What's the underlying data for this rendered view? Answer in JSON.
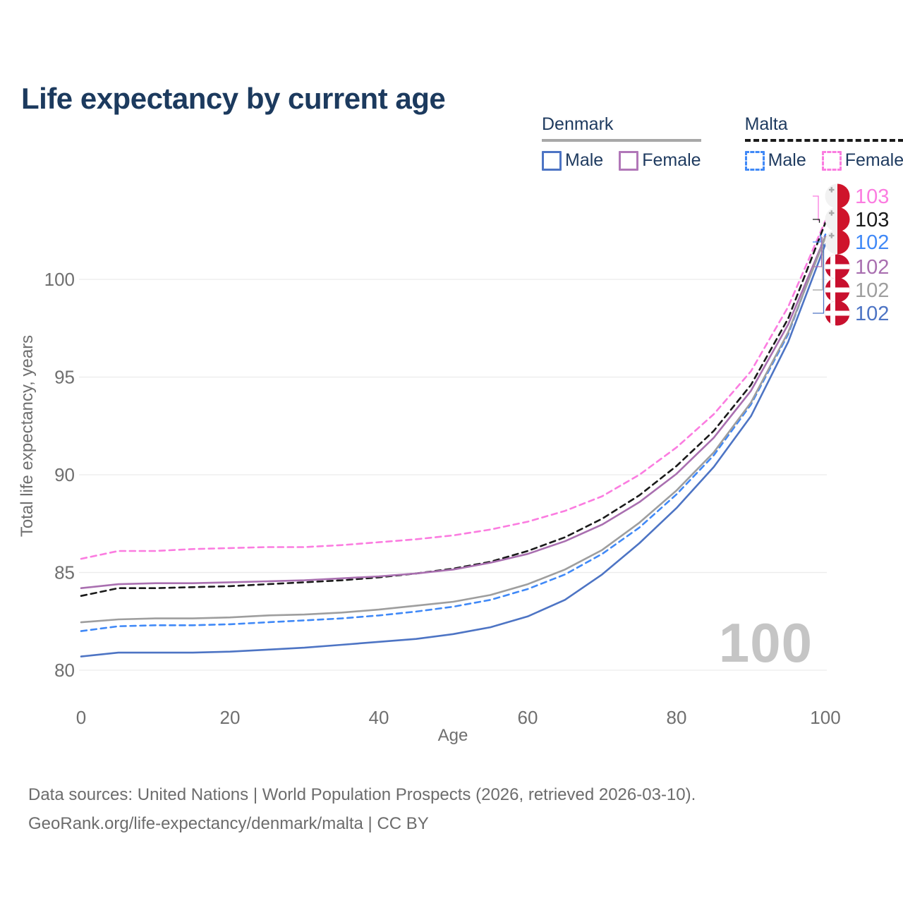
{
  "title": "Life expectancy by current age",
  "watermark": "100",
  "legend": {
    "groups": [
      {
        "name": "Denmark",
        "line_style": "solid",
        "underline_color": "#a8a8a8",
        "items": [
          {
            "label": "Male",
            "color": "#4d74c4",
            "dashed": false
          },
          {
            "label": "Female",
            "color": "#b177b8",
            "dashed": false
          }
        ]
      },
      {
        "name": "Malta",
        "line_style": "dashed",
        "underline_color": "#1a1a1a",
        "items": [
          {
            "label": "Male",
            "color": "#4089f7",
            "dashed": true
          },
          {
            "label": "Female",
            "color": "#fb7ce0",
            "dashed": true
          }
        ]
      }
    ]
  },
  "footer": {
    "line1": "Data sources: United Nations | World Population Prospects (2026, retrieved 2026-03-10).",
    "line2": "GeoRank.org/life-expectancy/denmark/malta | CC BY"
  },
  "chart_data": {
    "type": "line",
    "title": "Life expectancy by current age",
    "xlabel": "Age",
    "ylabel": "Total life expectancy, years",
    "xlim": [
      0,
      100
    ],
    "ylim": [
      79,
      105
    ],
    "x_ticks": [
      0,
      20,
      40,
      60,
      80,
      100
    ],
    "y_ticks": [
      80,
      85,
      90,
      95,
      100
    ],
    "grid": true,
    "legend_position": "top-right",
    "x": [
      0,
      5,
      10,
      15,
      20,
      25,
      30,
      35,
      40,
      45,
      50,
      55,
      60,
      65,
      70,
      75,
      80,
      85,
      90,
      95,
      100
    ],
    "series": [
      {
        "name": "Malta Female",
        "country": "Malta",
        "sex": "female",
        "color": "#fb7ce0",
        "dashed": true,
        "end_label": "103",
        "end_value": 103.0,
        "values": [
          85.7,
          86.1,
          86.1,
          86.2,
          86.25,
          86.3,
          86.3,
          86.4,
          86.55,
          86.7,
          86.9,
          87.2,
          87.6,
          88.15,
          88.9,
          90.0,
          91.4,
          93.1,
          95.3,
          98.6,
          103.0
        ]
      },
      {
        "name": "Malta",
        "country": "Malta",
        "sex": "total",
        "color": "#1a1a1a",
        "dashed": true,
        "end_label": "103",
        "end_value": 102.9,
        "values": [
          83.8,
          84.2,
          84.2,
          84.25,
          84.3,
          84.4,
          84.5,
          84.6,
          84.75,
          84.95,
          85.2,
          85.55,
          86.1,
          86.8,
          87.75,
          88.95,
          90.45,
          92.25,
          94.6,
          98.0,
          102.9
        ]
      },
      {
        "name": "Malta Male",
        "country": "Malta",
        "sex": "male",
        "color": "#4089f7",
        "dashed": true,
        "end_label": "102",
        "end_value": 102.3,
        "values": [
          82.0,
          82.25,
          82.3,
          82.3,
          82.35,
          82.45,
          82.55,
          82.65,
          82.8,
          83.0,
          83.25,
          83.6,
          84.15,
          84.9,
          85.95,
          87.3,
          89.0,
          91.0,
          93.6,
          97.2,
          102.3
        ]
      },
      {
        "name": "Denmark Female",
        "country": "Denmark",
        "sex": "female",
        "color": "#a96fb0",
        "dashed": false,
        "end_label": "102",
        "end_value": 102.2,
        "values": [
          84.2,
          84.4,
          84.45,
          84.45,
          84.5,
          84.55,
          84.6,
          84.7,
          84.8,
          84.95,
          85.15,
          85.5,
          85.95,
          86.6,
          87.45,
          88.6,
          90.05,
          91.9,
          94.3,
          97.7,
          102.2
        ]
      },
      {
        "name": "Denmark",
        "country": "Denmark",
        "sex": "total",
        "color": "#9e9e9e",
        "dashed": false,
        "end_label": "102",
        "end_value": 102.15,
        "values": [
          82.45,
          82.6,
          82.65,
          82.65,
          82.7,
          82.8,
          82.85,
          82.95,
          83.1,
          83.3,
          83.5,
          83.85,
          84.4,
          85.15,
          86.15,
          87.55,
          89.2,
          91.15,
          93.7,
          97.3,
          102.15
        ]
      },
      {
        "name": "Denmark Male",
        "country": "Denmark",
        "sex": "male",
        "color": "#4d74c4",
        "dashed": false,
        "end_label": "102",
        "end_value": 101.8,
        "values": [
          80.7,
          80.9,
          80.9,
          80.9,
          80.95,
          81.05,
          81.15,
          81.3,
          81.45,
          81.6,
          81.85,
          82.2,
          82.75,
          83.6,
          84.9,
          86.5,
          88.3,
          90.4,
          93.0,
          96.8,
          101.8
        ]
      }
    ],
    "flags": {
      "malta": {
        "red": "#cf142b",
        "white": "#f2f2f2",
        "cross": "#a8a8a8"
      },
      "denmark": {
        "red": "#c8102e",
        "cross": "#ffffff"
      }
    },
    "axis_text_color": "#6f6f6f",
    "grid_color": "#ececec"
  }
}
